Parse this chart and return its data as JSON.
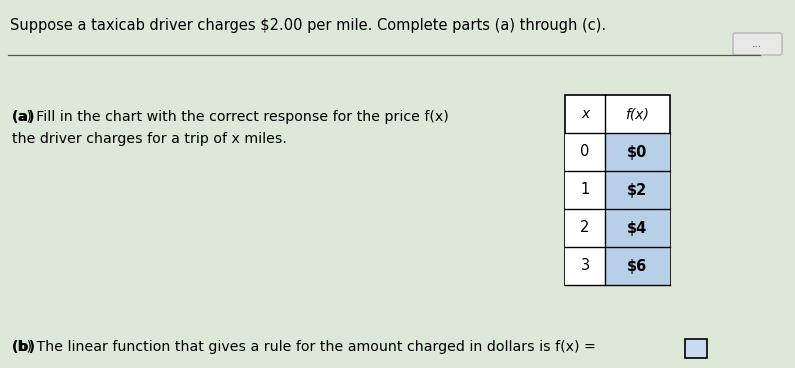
{
  "title_text": "Suppose a taxicab driver charges $2.00 per mile. Complete parts (a) through (c).",
  "part_a_line1": "(a) Fill in the chart with the correct response for the price f(x)",
  "part_a_line2": "the driver charges for a trip of x miles.",
  "part_b_text": "(b) The linear function that gives a rule for the amount charged in dollars is f(x) =",
  "table_headers": [
    "x",
    "f(x)"
  ],
  "table_x": [
    "0",
    "1",
    "2",
    "3"
  ],
  "table_fx": [
    "$0",
    "$2",
    "$4",
    "$6"
  ],
  "bg_color": "#dce8d8",
  "table_header_bg": "#ffffff",
  "table_cell_left_bg": "#ffffff",
  "table_cell_right_bg": "#b8cfe8",
  "dots_button_text": "...",
  "input_box_color": "#c8dcf0",
  "separator_line_color": "#555555"
}
